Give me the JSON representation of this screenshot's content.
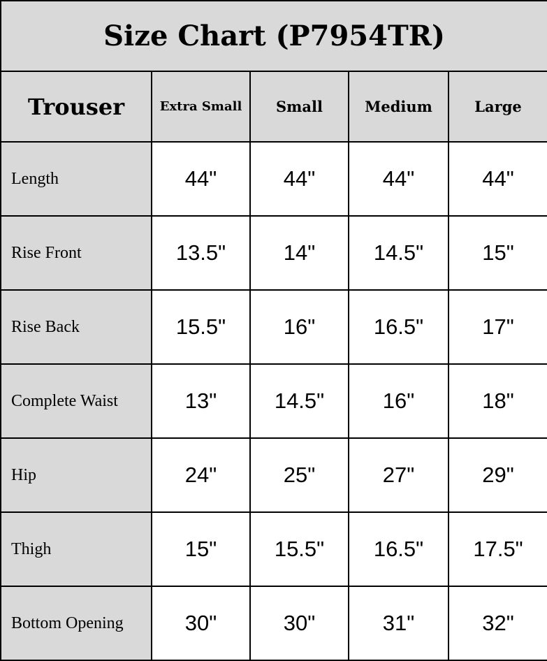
{
  "title": "Size Chart (P7954TR)",
  "header": {
    "first": "Trouser",
    "sizes": [
      "Extra Small",
      "Small",
      "Medium",
      "Large"
    ]
  },
  "rows": [
    {
      "label": "Length",
      "values": [
        "44\"",
        "44\"",
        "44\"",
        "44\""
      ]
    },
    {
      "label": "Rise Front",
      "values": [
        "13.5\"",
        "14\"",
        "14.5\"",
        "15\""
      ]
    },
    {
      "label": "Rise Back",
      "values": [
        "15.5\"",
        "16\"",
        "16.5\"",
        "17\""
      ]
    },
    {
      "label": "Complete Waist",
      "values": [
        "13\"",
        "14.5\"",
        "16\"",
        "18\""
      ]
    },
    {
      "label": "Hip",
      "values": [
        "24\"",
        "25\"",
        "27\"",
        "29\""
      ]
    },
    {
      "label": "Thigh",
      "values": [
        "15\"",
        "15.5\"",
        "16.5\"",
        "17.5\""
      ]
    },
    {
      "label": "Bottom Opening",
      "values": [
        "30\"",
        "30\"",
        "31\"",
        "32\""
      ]
    }
  ],
  "colors": {
    "header_bg": "#d9d9d9",
    "border": "#000000"
  }
}
